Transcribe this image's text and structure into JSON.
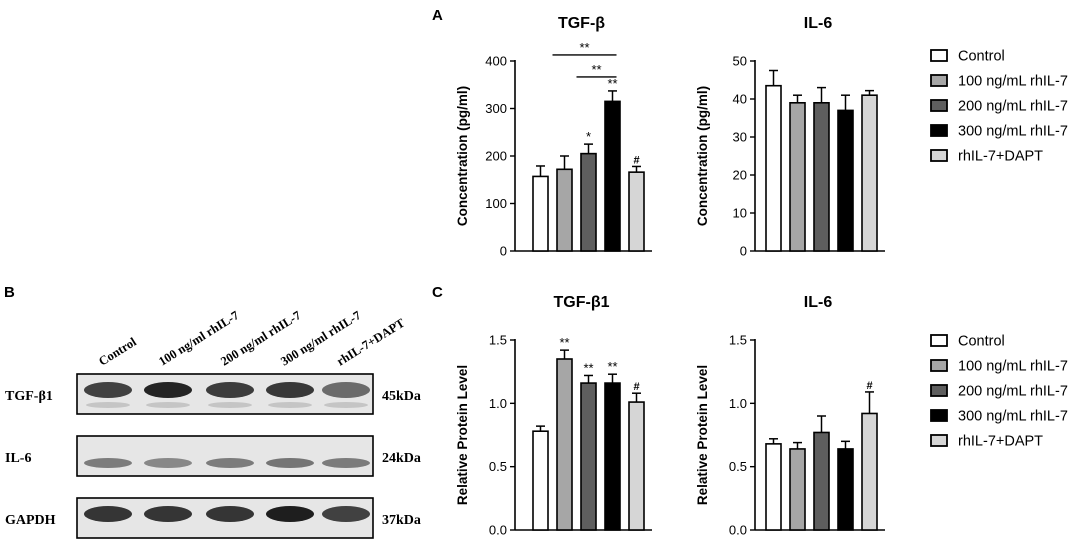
{
  "panel_labels": {
    "a": "A",
    "b": "B",
    "c": "C"
  },
  "legend": [
    {
      "label": "Control",
      "color": "#ffffff"
    },
    {
      "label": "100 ng/mL rhIL-7",
      "color": "#a6a6a6"
    },
    {
      "label": "200 ng/mL rhIL-7",
      "color": "#5e5e5e"
    },
    {
      "label": "300 ng/mL rhIL-7",
      "color": "#000000"
    },
    {
      "label": "rhIL-7+DAPT",
      "color": "#d6d6d6"
    }
  ],
  "western_blot": {
    "lanes": [
      "Control",
      "100 ng/ml rhIL-7",
      "200 ng/ml rhIL-7",
      "300 ng/ml rhIL-7",
      "rhIL-7+DAPT"
    ],
    "bands": [
      {
        "name": "TGF-β1",
        "size": "45kDa",
        "intensity": [
          0.8,
          0.92,
          0.82,
          0.84,
          0.62
        ]
      },
      {
        "name": "IL-6",
        "size": "24kDa",
        "intensity": [
          0.55,
          0.5,
          0.55,
          0.58,
          0.55
        ]
      },
      {
        "name": "GAPDH",
        "size": "37kDa",
        "intensity": [
          0.85,
          0.85,
          0.85,
          0.95,
          0.8
        ]
      }
    ]
  },
  "chart_data": [
    {
      "type": "bar",
      "panel": "A",
      "title": "TGF-β",
      "ylabel": "Concentration (pg/ml)",
      "ylim": [
        0,
        400
      ],
      "yticks": [
        0,
        100,
        200,
        300,
        400
      ],
      "categories": [
        "Control",
        "100 ng/mL rhIL-7",
        "200 ng/mL rhIL-7",
        "300 ng/mL rhIL-7",
        "rhIL-7+DAPT"
      ],
      "values": [
        157,
        172,
        205,
        315,
        166
      ],
      "errors": [
        22,
        28,
        20,
        22,
        12
      ],
      "annotations": [
        "",
        "",
        "*",
        "**",
        "#"
      ],
      "brackets": [
        {
          "from": 1,
          "to": 3,
          "label": "**",
          "level": 2
        },
        {
          "from": 2,
          "to": 3,
          "label": "**",
          "level": 1
        }
      ]
    },
    {
      "type": "bar",
      "panel": "A",
      "title": "IL-6",
      "ylabel": "Concentration (pg/ml)",
      "ylim": [
        0,
        50
      ],
      "yticks": [
        0,
        10,
        20,
        30,
        40,
        50
      ],
      "categories": [
        "Control",
        "100 ng/mL rhIL-7",
        "200 ng/mL rhIL-7",
        "300 ng/mL rhIL-7",
        "rhIL-7+DAPT"
      ],
      "values": [
        43.5,
        39,
        39,
        37,
        41
      ],
      "errors": [
        4,
        2,
        4,
        4,
        1.2
      ],
      "annotations": [
        "",
        "",
        "",
        "",
        ""
      ],
      "brackets": []
    },
    {
      "type": "bar",
      "panel": "C",
      "title": "TGF-β1",
      "ylabel": "Relative Protein Level",
      "ylim": [
        0,
        1.5
      ],
      "yticks": [
        "0.0",
        "0.5",
        "1.0",
        "1.5"
      ],
      "categories": [
        "Control",
        "100 ng/mL rhIL-7",
        "200 ng/mL rhIL-7",
        "300 ng/mL rhIL-7",
        "rhIL-7+DAPT"
      ],
      "values": [
        0.78,
        1.35,
        1.16,
        1.16,
        1.01
      ],
      "errors": [
        0.04,
        0.07,
        0.06,
        0.07,
        0.07
      ],
      "annotations": [
        "",
        "**",
        "**",
        "**",
        "#"
      ],
      "brackets": []
    },
    {
      "type": "bar",
      "panel": "C",
      "title": "IL-6",
      "ylabel": "Relative Protein Level",
      "ylim": [
        0,
        1.5
      ],
      "yticks": [
        "0.0",
        "0.5",
        "1.0",
        "1.5"
      ],
      "categories": [
        "Control",
        "100 ng/mL rhIL-7",
        "200 ng/mL rhIL-7",
        "300 ng/mL rhIL-7",
        "rhIL-7+DAPT"
      ],
      "values": [
        0.68,
        0.64,
        0.77,
        0.64,
        0.92
      ],
      "errors": [
        0.04,
        0.05,
        0.13,
        0.06,
        0.17
      ],
      "annotations": [
        "",
        "",
        "",
        "",
        "#"
      ],
      "brackets": []
    }
  ]
}
